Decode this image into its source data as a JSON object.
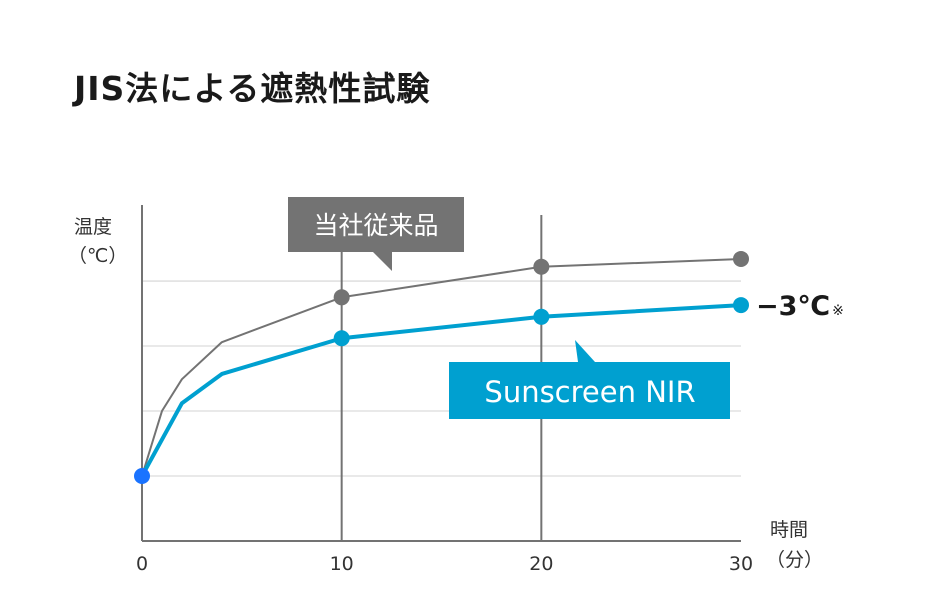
{
  "chart_data": {
    "type": "line",
    "title": "JIS法による遮熱性試験",
    "ylabel": [
      "温度",
      "（℃）"
    ],
    "xlabel": [
      "時間",
      "（分）"
    ],
    "x_ticks": [
      0,
      10,
      20,
      30
    ],
    "xlim": [
      0,
      30
    ],
    "ylim": [
      0,
      5.17
    ],
    "y_units": "relative (no numeric scale shown)",
    "grid": true,
    "grid_values": [
      1,
      2,
      3,
      4
    ],
    "series": [
      {
        "name": "当社従来品",
        "color": "#737373",
        "x": [
          0,
          1,
          2,
          4,
          10,
          20,
          30
        ],
        "y": [
          1.0,
          2.0,
          2.49,
          3.06,
          3.75,
          4.22,
          4.34
        ],
        "markers_at": [
          10,
          20,
          30
        ]
      },
      {
        "name": "Sunscreen NIR",
        "color": "#00a0d0",
        "x": [
          0,
          2,
          4,
          10,
          20,
          30
        ],
        "y": [
          1.0,
          2.12,
          2.57,
          3.12,
          3.45,
          3.63
        ],
        "markers_at": [
          10,
          20,
          30
        ]
      }
    ],
    "start_marker_color": "#1a73ff",
    "annotation": {
      "value": "−3℃",
      "note": "※"
    }
  }
}
